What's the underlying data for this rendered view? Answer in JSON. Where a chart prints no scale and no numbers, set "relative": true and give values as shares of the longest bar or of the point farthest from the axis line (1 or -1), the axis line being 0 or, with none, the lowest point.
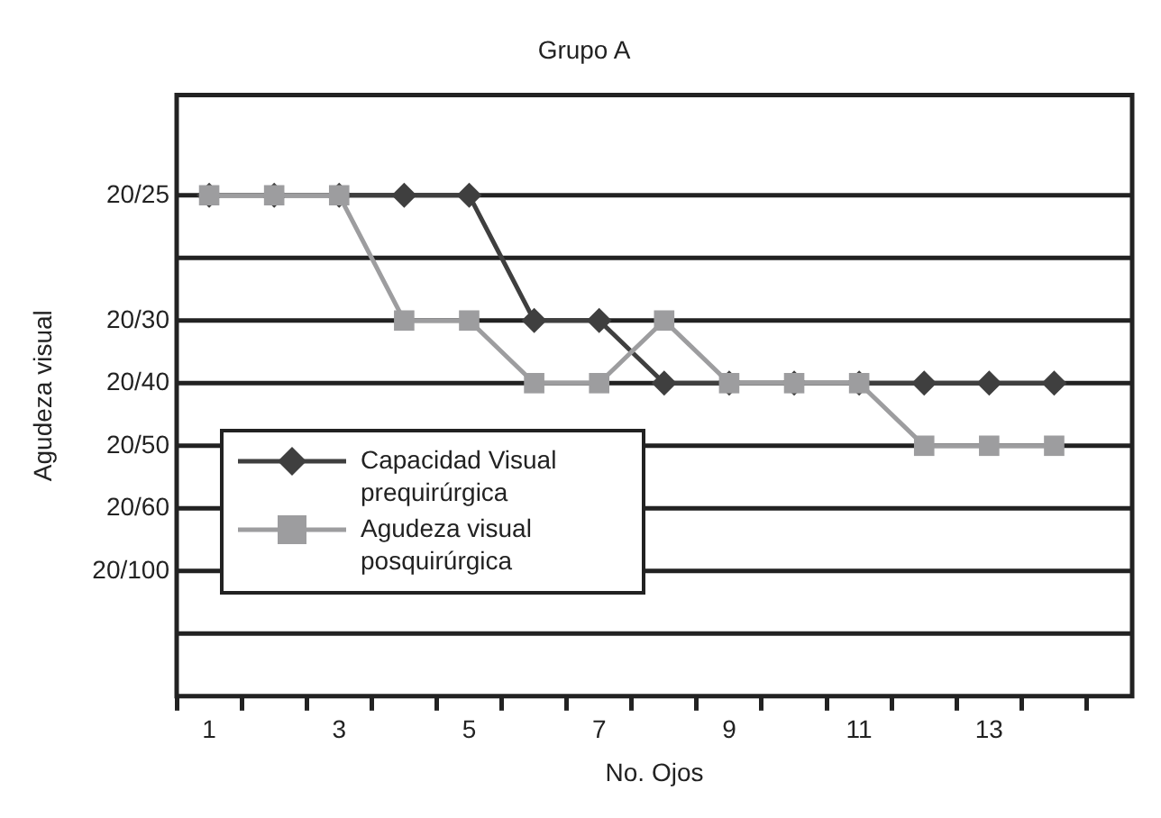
{
  "chart_data": {
    "type": "line",
    "title": "Grupo A",
    "xlabel": "No. Ojos",
    "ylabel": "Agudeza visual",
    "relative": true,
    "x": [
      1,
      2,
      3,
      4,
      5,
      6,
      7,
      8,
      9,
      10,
      11,
      12,
      13,
      14
    ],
    "series": [
      {
        "name": "Capacidad Visual prequirúrgica",
        "color": "#3f3f3f",
        "marker": "diamond",
        "values": [
          1,
          1,
          1,
          1,
          1,
          0.75,
          0.75,
          0.625,
          0.625,
          0.625,
          0.625,
          0.625,
          0.625,
          0.625
        ]
      },
      {
        "name": "Agudeza visual posquirúrgica",
        "color": "#9d9d9f",
        "marker": "square",
        "values": [
          1,
          1,
          1,
          0.75,
          0.75,
          0.625,
          0.625,
          0.75,
          0.625,
          0.625,
          0.625,
          0.5,
          0.5,
          0.5
        ]
      }
    ],
    "ref_lines": [
      {
        "axis": "y",
        "value": 1,
        "color": "#222222"
      },
      {
        "axis": "y",
        "value": 0.875,
        "label": null,
        "color": "#222222"
      },
      {
        "axis": "y",
        "value": 0.75,
        "color": "#222222"
      },
      {
        "axis": "y",
        "value": 0.625,
        "color": "#222222"
      },
      {
        "axis": "y",
        "value": 0.5,
        "color": "#222222"
      },
      {
        "axis": "y",
        "value": 0.375,
        "color": "#222222"
      },
      {
        "axis": "y",
        "value": 0.25,
        "color": "#222222"
      },
      {
        "axis": "y",
        "value": 0.125,
        "label": null,
        "color": "#222222"
      }
    ],
    "annotations": [
      "20/25",
      "20/30",
      "20/40",
      "20/50",
      "20/60",
      "20/100"
    ],
    "xlim": [
      0.5,
      15.2
    ],
    "xticks": [
      {
        "value": 0.5,
        "label": null
      },
      {
        "value": 1,
        "label": "1"
      },
      {
        "value": 1.5,
        "label": null
      },
      {
        "value": 2.5,
        "label": null
      },
      {
        "value": 3,
        "label": "3"
      },
      {
        "value": 3.5,
        "label": null
      },
      {
        "value": 4.5,
        "label": null
      },
      {
        "value": 5,
        "label": "5"
      },
      {
        "value": 5.5,
        "label": null
      },
      {
        "value": 6.5,
        "label": null
      },
      {
        "value": 7,
        "label": "7"
      },
      {
        "value": 7.5,
        "label": null
      },
      {
        "value": 8.5,
        "label": null
      },
      {
        "value": 9,
        "label": "9"
      },
      {
        "value": 9.5,
        "label": null
      },
      {
        "value": 10.5,
        "label": null
      },
      {
        "value": 11,
        "label": "11"
      },
      {
        "value": 11.5,
        "label": null
      },
      {
        "value": 12.5,
        "label": null
      },
      {
        "value": 13,
        "label": "13"
      },
      {
        "value": 13.5,
        "label": null
      },
      {
        "value": 14.5,
        "label": null
      }
    ],
    "legend": "bottom left",
    "line_style": "solid"
  }
}
